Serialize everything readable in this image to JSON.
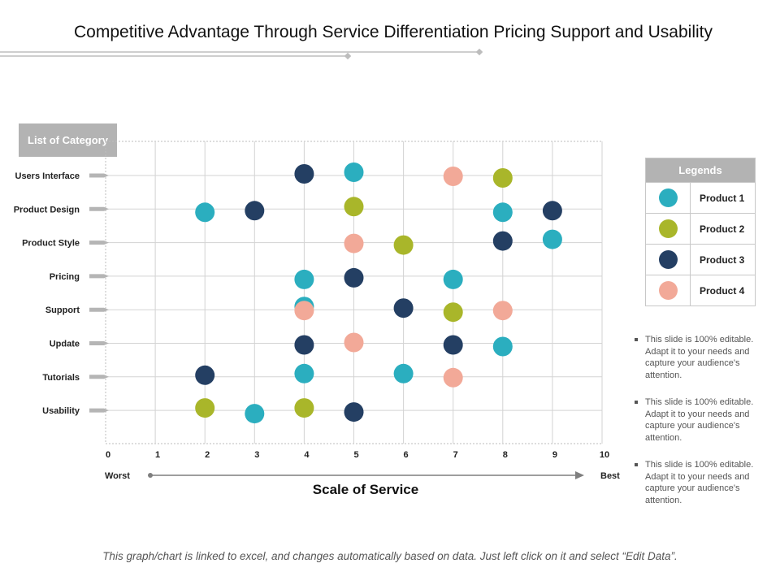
{
  "page": {
    "title": "Competitive Advantage Through Service Differentiation Pricing Support and Usability",
    "footer": "This graph/chart is linked to excel, and changes automatically based on data. Just left click on it and select “Edit Data”."
  },
  "notes": [
    "This slide is 100% editable. Adapt it to your needs and capture your audience's attention.",
    "This slide is 100% editable. Adapt it to your needs and capture your audience's attention.",
    "This slide is 100% editable. Adapt it to your needs and capture your audience's attention."
  ],
  "chart_data": {
    "type": "scatter",
    "title": "Scale of Service",
    "category_header": "List of Category",
    "categories": [
      "Users Interface",
      "Product Design",
      "Product Style",
      "Pricing",
      "Support",
      "Update",
      "Tutorials",
      "Usability"
    ],
    "x_ticks": [
      0,
      1,
      2,
      3,
      4,
      5,
      6,
      7,
      8,
      9,
      10
    ],
    "xlim": [
      0,
      10
    ],
    "x_worst_label": "Worst",
    "x_best_label": "Best",
    "xlabel": "Scale of Service",
    "grid": true,
    "legend_title": "Legends",
    "legend_position": "right",
    "series": [
      {
        "name": "Product 1",
        "color": "#2baebf",
        "values": [
          5,
          8,
          9,
          7,
          4,
          8,
          6,
          3
        ]
      },
      {
        "name": "Product 2",
        "color": "#a9b62a",
        "values": [
          8,
          5,
          6,
          null,
          7,
          null,
          null,
          4
        ]
      },
      {
        "name": "Product 3",
        "color": "#243f63",
        "values": [
          4,
          9,
          8,
          5,
          6,
          7,
          2,
          5
        ]
      },
      {
        "name": "Product 4",
        "color": "#f2a998",
        "values": [
          7,
          null,
          5,
          null,
          8,
          5,
          7,
          null
        ]
      },
      {
        "name": "Product 1",
        "color": "#2baebf",
        "values": [
          null,
          2,
          null,
          4,
          null,
          null,
          4,
          null
        ]
      },
      {
        "name": "Product 2",
        "color": "#a9b62a",
        "values": [
          null,
          null,
          null,
          null,
          null,
          null,
          null,
          2
        ]
      },
      {
        "name": "Product 3",
        "color": "#243f63",
        "values": [
          null,
          3,
          null,
          null,
          null,
          4,
          null,
          null
        ]
      },
      {
        "name": "Product 4",
        "color": "#f2a998",
        "values": [
          null,
          null,
          null,
          null,
          4,
          null,
          null,
          null
        ]
      }
    ]
  }
}
